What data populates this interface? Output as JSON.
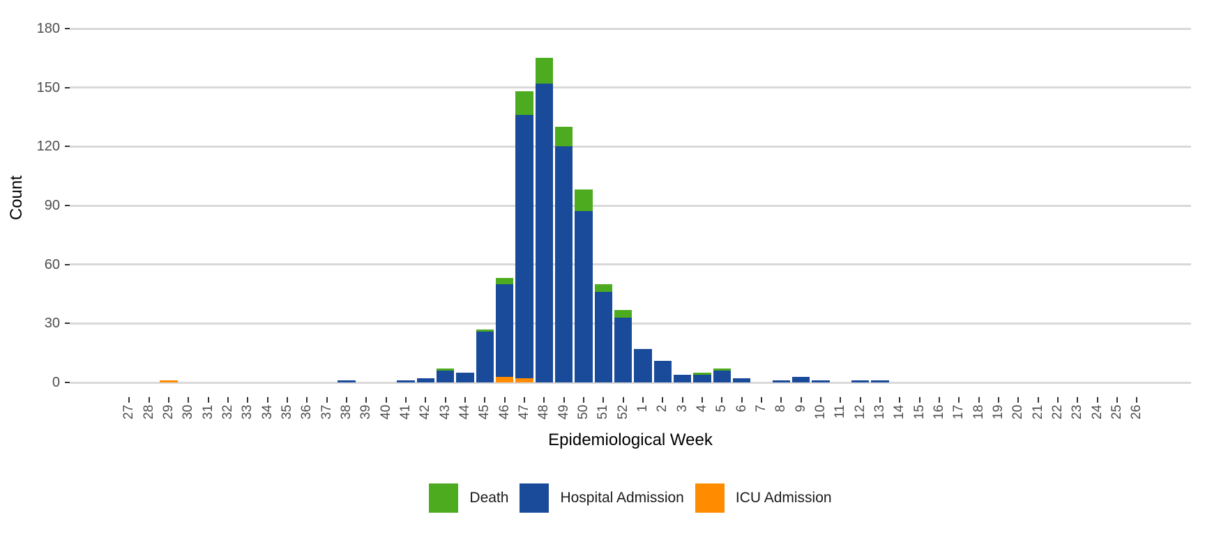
{
  "chart": {
    "y_axis": {
      "label": "Count",
      "ticks": [
        0,
        30,
        60,
        90,
        120,
        150,
        180
      ]
    },
    "x_axis": {
      "label": "Epidemiological Week"
    },
    "legend": [
      {
        "label": "Death",
        "color": "#4CAB1E"
      },
      {
        "label": "Hospital Admission",
        "color": "#1A4A9A"
      },
      {
        "label": "ICU Admission",
        "color": "#FF8C00"
      }
    ],
    "colors": {
      "background": "#FFFFFF",
      "gridline": "#D9D9D9",
      "tick_text": "#4D4D4D",
      "title_text": "#000000"
    }
  },
  "chart_data": {
    "type": "bar",
    "stacked": true,
    "title": "",
    "xlabel": "Epidemiological Week",
    "ylabel": "Count",
    "ylim": [
      0,
      187
    ],
    "grid": true,
    "legend_position": "bottom",
    "categories": [
      "27",
      "28",
      "29",
      "30",
      "31",
      "32",
      "33",
      "34",
      "35",
      "36",
      "37",
      "38",
      "39",
      "40",
      "41",
      "42",
      "43",
      "44",
      "45",
      "46",
      "47",
      "48",
      "49",
      "50",
      "51",
      "52",
      "1",
      "2",
      "3",
      "4",
      "5",
      "6",
      "7",
      "8",
      "9",
      "10",
      "11",
      "12",
      "13",
      "14",
      "15",
      "16",
      "17",
      "18",
      "19",
      "20",
      "21",
      "22",
      "23",
      "24",
      "25",
      "26"
    ],
    "series": [
      {
        "name": "ICU Admission",
        "color": "#FF8C00",
        "values": [
          0,
          0,
          1,
          0,
          0,
          0,
          0,
          0,
          0,
          0,
          0,
          0,
          0,
          0,
          0,
          0,
          0,
          0,
          0,
          3,
          2,
          0,
          0,
          0,
          0,
          0,
          0,
          0,
          0,
          0,
          0,
          0,
          0,
          0,
          0,
          0,
          0,
          0,
          0,
          0,
          0,
          0,
          0,
          0,
          0,
          0,
          0,
          0,
          0,
          0,
          0,
          0
        ]
      },
      {
        "name": "Hospital Admission",
        "color": "#1A4A9A",
        "values": [
          0,
          0,
          0,
          0,
          0,
          0,
          0,
          0,
          0,
          0,
          0,
          1,
          0,
          0,
          1,
          2,
          6,
          5,
          26,
          47,
          134,
          152,
          120,
          87,
          46,
          33,
          17,
          11,
          4,
          4,
          6,
          2,
          0,
          1,
          3,
          1,
          0,
          1,
          1,
          0,
          0,
          0,
          0,
          0,
          0,
          0,
          0,
          0,
          0,
          0,
          0,
          0
        ]
      },
      {
        "name": "Death",
        "color": "#4CAB1E",
        "values": [
          0,
          0,
          0,
          0,
          0,
          0,
          0,
          0,
          0,
          0,
          0,
          0,
          0,
          0,
          0,
          0,
          1,
          0,
          1,
          3,
          12,
          13,
          10,
          11,
          4,
          4,
          0,
          0,
          0,
          1,
          1,
          0,
          0,
          0,
          0,
          0,
          0,
          0,
          0,
          0,
          0,
          0,
          0,
          0,
          0,
          0,
          0,
          0,
          0,
          0,
          0,
          0
        ]
      }
    ]
  }
}
